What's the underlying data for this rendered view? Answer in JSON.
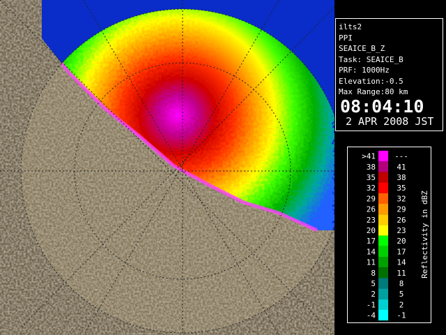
{
  "info": {
    "lines": [
      "ilts2",
      "PPI",
      "SEAICE_B_Z",
      "Task: SEAICE_B",
      "PRF: 1000Hz",
      "Elevation:-0.5",
      "Max Range:80 km"
    ],
    "time": "08:04:10",
    "date": "2 APR 2008 JST"
  },
  "legend": {
    "title": "Reflectivity in dBZ",
    "rows": [
      {
        "low": ">41",
        "high": "---",
        "color": "#ff00ff"
      },
      {
        "low": "38",
        "high": "41",
        "color": "#b4007c"
      },
      {
        "low": "35",
        "high": "38",
        "color": "#c00000"
      },
      {
        "low": "32",
        "high": "35",
        "color": "#ff0000"
      },
      {
        "low": "29",
        "high": "32",
        "color": "#ff6000"
      },
      {
        "low": "26",
        "high": "29",
        "color": "#ff9a00"
      },
      {
        "low": "23",
        "high": "26",
        "color": "#ffcc00"
      },
      {
        "low": "20",
        "high": "23",
        "color": "#ffff00"
      },
      {
        "low": "17",
        "high": "20",
        "color": "#00ff00"
      },
      {
        "low": "14",
        "high": "17",
        "color": "#00d000"
      },
      {
        "low": "11",
        "high": "14",
        "color": "#00a000"
      },
      {
        "low": "8",
        "high": "11",
        "color": "#007000"
      },
      {
        "low": "5",
        "high": "8",
        "color": "#007a7a"
      },
      {
        "low": "2",
        "high": "5",
        "color": "#00a0a0"
      },
      {
        "low": "-1",
        "high": "2",
        "color": "#00d0d0"
      },
      {
        "low": "-4",
        "high": "-1",
        "color": "#00ffff"
      }
    ]
  }
}
